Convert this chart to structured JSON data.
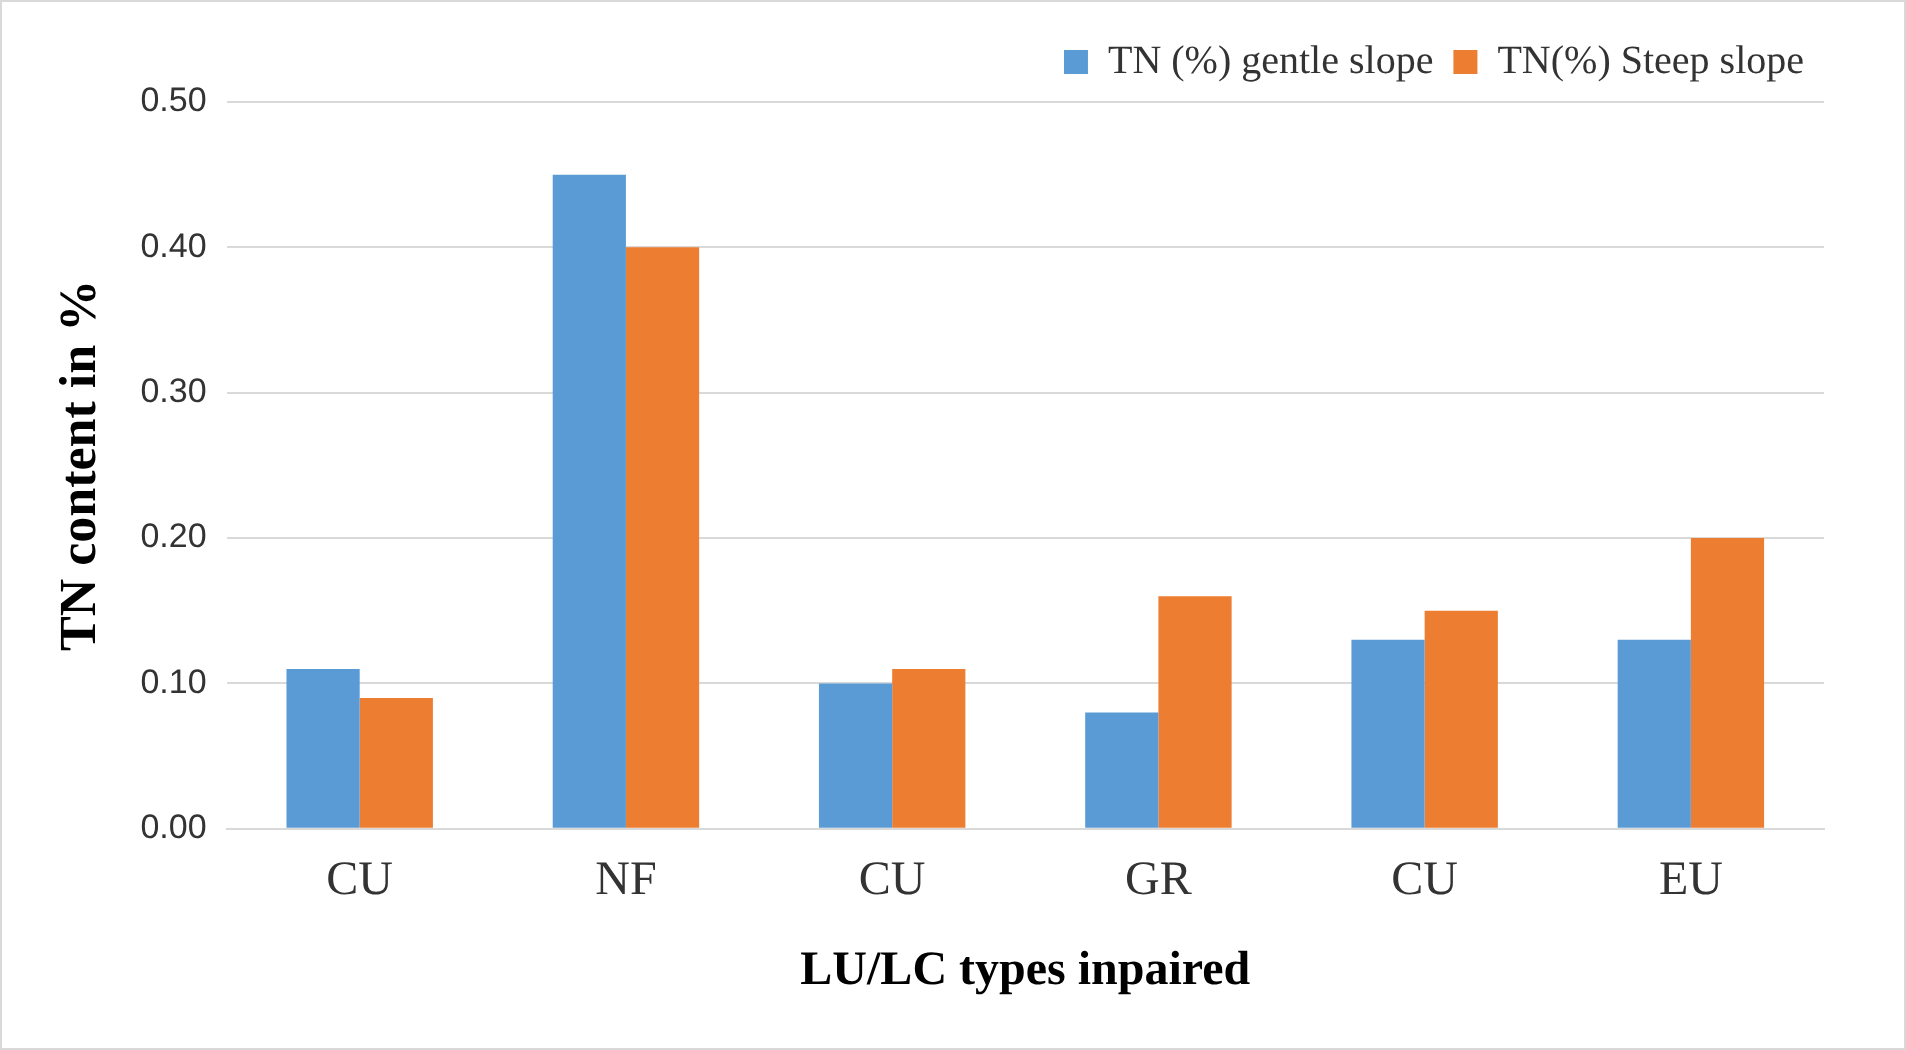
{
  "chart_data": {
    "type": "bar",
    "xlabel": "LU/LC types inpaired",
    "ylabel": "TN content in %",
    "categories": [
      "CU",
      "NF",
      "CU",
      "GR",
      "CU",
      "EU"
    ],
    "series": [
      {
        "name": "TN (%) gentle slope",
        "color": "#5b9bd5",
        "values": [
          0.11,
          0.45,
          0.1,
          0.08,
          0.13,
          0.13
        ]
      },
      {
        "name": "TN(%) Steep slope",
        "color": "#ed7d31",
        "values": [
          0.09,
          0.4,
          0.11,
          0.16,
          0.15,
          0.2
        ]
      }
    ],
    "ylim": [
      0,
      0.5
    ],
    "yticks": [
      {
        "value": 0,
        "label": "0.00"
      },
      {
        "value": 0.1,
        "label": "0.10"
      },
      {
        "value": 0.2,
        "label": "0.20"
      },
      {
        "value": 0.3,
        "label": "0.30"
      },
      {
        "value": 0.4,
        "label": "0.40"
      },
      {
        "value": 0.5,
        "label": "0.50"
      }
    ],
    "grid": "y",
    "legend": "top right"
  }
}
